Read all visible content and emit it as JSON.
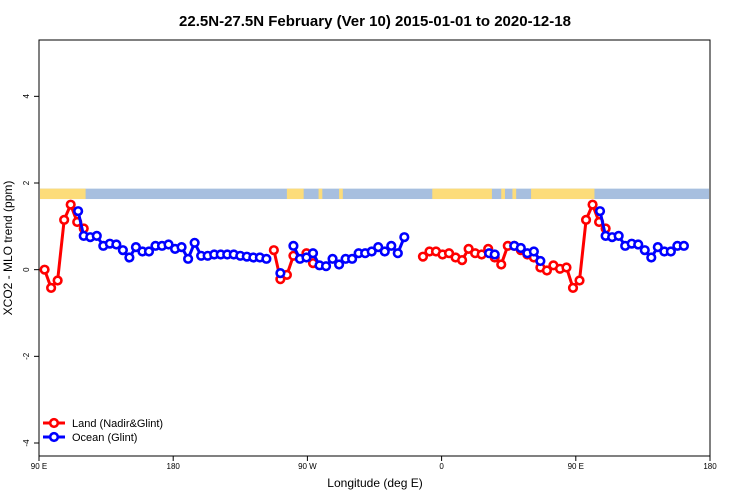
{
  "chart_data": {
    "type": "line",
    "title": "22.5N-27.5N February (Ver 10)   2015-01-01 to 2020-12-18",
    "xlabel": "Longitude (deg E)",
    "ylabel": "XCO2 - MLO trend (ppm)",
    "xlim": [
      90,
      450
    ],
    "ylim": [
      -4.3,
      5.3
    ],
    "x_ticks": [
      {
        "value": 90,
        "label": "90 E"
      },
      {
        "value": 162,
        "label": "180"
      },
      {
        "value": 234,
        "label": "90 W"
      },
      {
        "value": 306,
        "label": "0"
      },
      {
        "value": 378,
        "label": "90 E"
      },
      {
        "value": 450,
        "label": "180"
      }
    ],
    "y_ticks": [
      {
        "value": -4,
        "label": "-4"
      },
      {
        "value": -2,
        "label": "-2"
      },
      {
        "value": 0,
        "label": "0"
      },
      {
        "value": 2,
        "label": "2"
      },
      {
        "value": 4,
        "label": "4"
      }
    ],
    "land_mask": {
      "y_range": [
        1.63,
        1.87
      ],
      "ocean_color": "#a7bfdf",
      "land_color": "#fcdc7a",
      "land_segments": [
        [
          90,
          115
        ],
        [
          223,
          232
        ],
        [
          240,
          242
        ],
        [
          251,
          253
        ],
        [
          301,
          333
        ],
        [
          338,
          340
        ],
        [
          344,
          346
        ],
        [
          354,
          388
        ]
      ]
    },
    "series": [
      {
        "name": "Land (Nadir&Glint)",
        "color": "#ff0000",
        "points": [
          [
            93,
            0.0
          ],
          [
            96.5,
            -0.42
          ],
          [
            100,
            -0.25
          ],
          [
            103.5,
            1.15
          ],
          [
            107,
            1.5
          ],
          [
            110.5,
            1.1
          ],
          [
            114,
            0.95
          ],
          [
            216,
            0.45
          ],
          [
            219.5,
            -0.22
          ],
          [
            223,
            -0.12
          ],
          [
            226.5,
            0.32
          ],
          [
            233.5,
            0.38
          ],
          [
            237,
            0.15
          ],
          [
            296,
            0.3
          ],
          [
            299.5,
            0.42
          ],
          [
            303,
            0.42
          ],
          [
            306.5,
            0.35
          ],
          [
            310,
            0.38
          ],
          [
            313.5,
            0.28
          ],
          [
            317,
            0.22
          ],
          [
            320.5,
            0.48
          ],
          [
            324,
            0.38
          ],
          [
            327.5,
            0.35
          ],
          [
            331,
            0.48
          ],
          [
            334.5,
            0.28
          ],
          [
            338,
            0.12
          ],
          [
            341.5,
            0.55
          ],
          [
            345,
            0.55
          ],
          [
            348.5,
            0.45
          ],
          [
            352,
            0.35
          ],
          [
            355.5,
            0.28
          ],
          [
            359,
            0.05
          ],
          [
            362.5,
            -0.02
          ],
          [
            366,
            0.1
          ],
          [
            369.5,
            0.02
          ],
          [
            373,
            0.05
          ],
          [
            376.5,
            -0.42
          ],
          [
            380,
            -0.25
          ],
          [
            383.5,
            1.15
          ],
          [
            387,
            1.5
          ],
          [
            390.5,
            1.1
          ],
          [
            394,
            0.95
          ]
        ]
      },
      {
        "name": "Ocean (Glint)",
        "color": "#0000ff",
        "points": [
          [
            111,
            1.35
          ],
          [
            114,
            0.78
          ],
          [
            117.5,
            0.75
          ],
          [
            121,
            0.78
          ],
          [
            124.5,
            0.55
          ],
          [
            128,
            0.6
          ],
          [
            131.5,
            0.58
          ],
          [
            135,
            0.45
          ],
          [
            138.5,
            0.28
          ],
          [
            142,
            0.52
          ],
          [
            145.5,
            0.42
          ],
          [
            149,
            0.42
          ],
          [
            152.5,
            0.55
          ],
          [
            156,
            0.55
          ],
          [
            159.5,
            0.58
          ],
          [
            163,
            0.48
          ],
          [
            166.5,
            0.52
          ],
          [
            170,
            0.25
          ],
          [
            173.5,
            0.62
          ],
          [
            177,
            0.32
          ],
          [
            180.5,
            0.32
          ],
          [
            184,
            0.35
          ],
          [
            187.5,
            0.35
          ],
          [
            191,
            0.35
          ],
          [
            194.5,
            0.35
          ],
          [
            198,
            0.32
          ],
          [
            201.5,
            0.3
          ],
          [
            205,
            0.28
          ],
          [
            208.5,
            0.28
          ],
          [
            212,
            0.25
          ],
          [
            219.5,
            -0.08
          ],
          [
            226.5,
            0.55
          ],
          [
            230,
            0.25
          ],
          [
            233.5,
            0.28
          ],
          [
            237,
            0.38
          ],
          [
            240.5,
            0.1
          ],
          [
            244,
            0.08
          ],
          [
            247.5,
            0.25
          ],
          [
            251,
            0.12
          ],
          [
            254.5,
            0.25
          ],
          [
            258,
            0.25
          ],
          [
            261.5,
            0.38
          ],
          [
            265,
            0.38
          ],
          [
            268.5,
            0.42
          ],
          [
            272,
            0.52
          ],
          [
            275.5,
            0.42
          ],
          [
            279,
            0.55
          ],
          [
            282.5,
            0.38
          ],
          [
            286,
            0.75
          ],
          [
            331.5,
            0.38
          ],
          [
            334.5,
            0.35
          ],
          [
            345,
            0.55
          ],
          [
            348.5,
            0.5
          ],
          [
            352,
            0.38
          ],
          [
            355.5,
            0.42
          ],
          [
            359,
            0.2
          ],
          [
            391,
            1.35
          ],
          [
            394,
            0.78
          ],
          [
            397.5,
            0.75
          ],
          [
            401,
            0.78
          ],
          [
            404.5,
            0.55
          ],
          [
            408,
            0.6
          ],
          [
            411.5,
            0.58
          ],
          [
            415,
            0.45
          ],
          [
            418.5,
            0.28
          ],
          [
            422,
            0.52
          ],
          [
            425.5,
            0.42
          ],
          [
            429,
            0.42
          ],
          [
            432.5,
            0.55
          ],
          [
            436,
            0.55
          ]
        ]
      }
    ],
    "legend_position": "bottom-left",
    "grid": false
  }
}
